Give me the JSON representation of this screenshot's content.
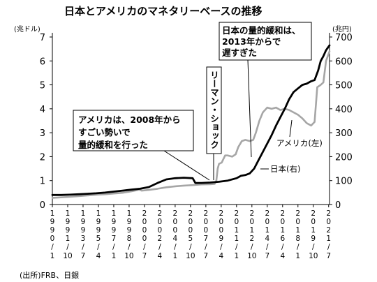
{
  "title": "日本とアメリカのマネタリーベースの推移",
  "source": "(出所)FRB、日銀",
  "chart_data": {
    "type": "line",
    "title": "日本とアメリカのマネタリーベースの推移",
    "left_axis": {
      "unit": "(兆ドル)",
      "range": [
        0,
        7
      ],
      "ticks": [
        0,
        1,
        2,
        3,
        4,
        5,
        6,
        7
      ]
    },
    "right_axis": {
      "unit": "(兆円)",
      "range": [
        0,
        700
      ],
      "ticks": [
        0,
        100,
        200,
        300,
        400,
        500,
        600,
        700
      ]
    },
    "x_range": [
      1990.0,
      2021.6
    ],
    "x_ticks": [
      {
        "t": 1990.0,
        "year": "1990",
        "month": "1"
      },
      {
        "t": 1991.75,
        "year": "1991",
        "month": "10"
      },
      {
        "t": 1993.5,
        "year": "1993",
        "month": "7"
      },
      {
        "t": 1995.25,
        "year": "1995",
        "month": "4"
      },
      {
        "t": 1997.0,
        "year": "1997",
        "month": "1"
      },
      {
        "t": 1998.75,
        "year": "1998",
        "month": "10"
      },
      {
        "t": 2000.5,
        "year": "2000",
        "month": "7"
      },
      {
        "t": 2002.25,
        "year": "2002",
        "month": "4"
      },
      {
        "t": 2004.0,
        "year": "2004",
        "month": "1"
      },
      {
        "t": 2005.75,
        "year": "2005",
        "month": "10"
      },
      {
        "t": 2007.5,
        "year": "2007",
        "month": "7"
      },
      {
        "t": 2009.25,
        "year": "2009",
        "month": "4"
      },
      {
        "t": 2011.0,
        "year": "2011",
        "month": "1"
      },
      {
        "t": 2012.75,
        "year": "2012",
        "month": "10"
      },
      {
        "t": 2014.5,
        "year": "2014",
        "month": "7"
      },
      {
        "t": 2016.25,
        "year": "2016",
        "month": "4"
      },
      {
        "t": 2018.0,
        "year": "2018",
        "month": "1"
      },
      {
        "t": 2019.75,
        "year": "2019",
        "month": "10"
      },
      {
        "t": 2021.5,
        "year": "2021",
        "month": "7"
      }
    ],
    "series": [
      {
        "name": "アメリカ(左)",
        "axis": "left",
        "color": "#a6a6a6",
        "points": [
          [
            1990.0,
            0.28
          ],
          [
            1991.0,
            0.3
          ],
          [
            1992.0,
            0.32
          ],
          [
            1993.0,
            0.35
          ],
          [
            1994.0,
            0.38
          ],
          [
            1995.0,
            0.41
          ],
          [
            1996.0,
            0.43
          ],
          [
            1997.0,
            0.46
          ],
          [
            1998.0,
            0.49
          ],
          [
            1999.0,
            0.55
          ],
          [
            1999.9,
            0.62
          ],
          [
            2000.2,
            0.58
          ],
          [
            2001.0,
            0.61
          ],
          [
            2002.0,
            0.66
          ],
          [
            2003.0,
            0.72
          ],
          [
            2004.0,
            0.76
          ],
          [
            2005.0,
            0.79
          ],
          [
            2006.0,
            0.81
          ],
          [
            2007.0,
            0.84
          ],
          [
            2008.0,
            0.85
          ],
          [
            2008.5,
            0.86
          ],
          [
            2008.7,
            1.0
          ],
          [
            2008.85,
            1.5
          ],
          [
            2009.0,
            1.7
          ],
          [
            2009.3,
            1.75
          ],
          [
            2009.7,
            2.05
          ],
          [
            2010.0,
            2.05
          ],
          [
            2010.5,
            2.0
          ],
          [
            2010.9,
            2.1
          ],
          [
            2011.2,
            2.4
          ],
          [
            2011.6,
            2.65
          ],
          [
            2012.0,
            2.7
          ],
          [
            2012.5,
            2.65
          ],
          [
            2012.9,
            2.7
          ],
          [
            2013.2,
            3.0
          ],
          [
            2013.6,
            3.5
          ],
          [
            2014.0,
            3.85
          ],
          [
            2014.5,
            4.05
          ],
          [
            2015.0,
            4.0
          ],
          [
            2015.5,
            4.05
          ],
          [
            2016.0,
            3.95
          ],
          [
            2016.5,
            4.0
          ],
          [
            2017.0,
            3.95
          ],
          [
            2017.5,
            3.85
          ],
          [
            2018.0,
            3.75
          ],
          [
            2018.5,
            3.6
          ],
          [
            2019.0,
            3.4
          ],
          [
            2019.5,
            3.3
          ],
          [
            2019.9,
            3.45
          ],
          [
            2020.2,
            4.9
          ],
          [
            2020.6,
            5.0
          ],
          [
            2020.9,
            5.1
          ],
          [
            2021.2,
            6.0
          ],
          [
            2021.6,
            6.4
          ]
        ]
      },
      {
        "name": "日本(右)",
        "axis": "right",
        "color": "#000000",
        "points": [
          [
            1990.0,
            40
          ],
          [
            1991.0,
            40
          ],
          [
            1992.0,
            41
          ],
          [
            1993.0,
            43
          ],
          [
            1994.0,
            45
          ],
          [
            1995.0,
            47
          ],
          [
            1996.0,
            50
          ],
          [
            1997.0,
            54
          ],
          [
            1998.0,
            58
          ],
          [
            1999.0,
            62
          ],
          [
            2000.0,
            66
          ],
          [
            2001.0,
            73
          ],
          [
            2002.0,
            90
          ],
          [
            2003.0,
            105
          ],
          [
            2004.0,
            110
          ],
          [
            2005.0,
            112
          ],
          [
            2006.0,
            110
          ],
          [
            2006.3,
            90
          ],
          [
            2007.0,
            90
          ],
          [
            2008.0,
            92
          ],
          [
            2009.0,
            95
          ],
          [
            2010.0,
            100
          ],
          [
            2011.0,
            110
          ],
          [
            2011.5,
            120
          ],
          [
            2012.0,
            123
          ],
          [
            2012.5,
            130
          ],
          [
            2013.0,
            150
          ],
          [
            2013.5,
            185
          ],
          [
            2014.0,
            220
          ],
          [
            2014.5,
            255
          ],
          [
            2015.0,
            290
          ],
          [
            2015.5,
            330
          ],
          [
            2016.0,
            365
          ],
          [
            2016.5,
            400
          ],
          [
            2017.0,
            440
          ],
          [
            2017.5,
            470
          ],
          [
            2018.0,
            485
          ],
          [
            2018.5,
            500
          ],
          [
            2019.0,
            505
          ],
          [
            2019.5,
            515
          ],
          [
            2019.9,
            520
          ],
          [
            2020.3,
            560
          ],
          [
            2020.6,
            600
          ],
          [
            2020.9,
            620
          ],
          [
            2021.2,
            645
          ],
          [
            2021.6,
            665
          ]
        ]
      }
    ],
    "annotations": {
      "usa_2008": [
        "アメリカは、2008年から",
        "すごい勢いで",
        "量的緩和を行った"
      ],
      "lehman": "リーマン・ショック",
      "japan_2013": [
        "日本の量的緩和は、",
        "2013年からで",
        "遅すぎた"
      ],
      "usa_label": "アメリカ(左)",
      "japan_label": "日本(右)"
    }
  }
}
